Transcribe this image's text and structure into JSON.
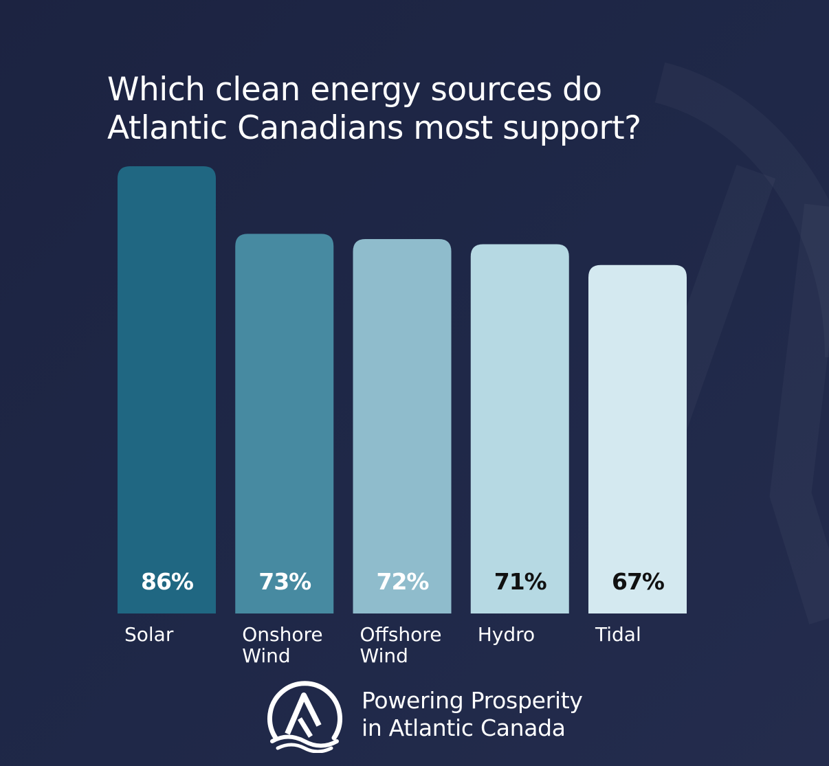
{
  "title_line1": "Which clean energy sources do",
  "title_line2": "Atlantic Canadians most support?",
  "chart_data": {
    "type": "bar",
    "categories": [
      "Solar",
      "Onshore Wind",
      "Offshore Wind",
      "Hydro",
      "Tidal"
    ],
    "values": [
      86,
      73,
      72,
      71,
      67
    ],
    "value_labels": [
      "86%",
      "73%",
      "72%",
      "71%",
      "67%"
    ],
    "category_label_lines": [
      [
        "Solar"
      ],
      [
        "Onshore",
        "Wind"
      ],
      [
        "Offshore",
        "Wind"
      ],
      [
        "Hydro"
      ],
      [
        "Tidal"
      ]
    ],
    "bar_colors": [
      "#206782",
      "#478aa1",
      "#8fbccc",
      "#b6d9e3",
      "#d4e9f0"
    ],
    "value_label_colors": [
      "#ffffff",
      "#ffffff",
      "#ffffff",
      "#111111",
      "#111111"
    ],
    "ylim": [
      0,
      100
    ],
    "grid": false
  },
  "footer": {
    "line1": "Powering Prosperity",
    "line2": "in Atlantic Canada",
    "logo_icon": "mountain-wave-logo-icon"
  },
  "colors": {
    "background": "#1f2747",
    "text": "#ffffff"
  }
}
